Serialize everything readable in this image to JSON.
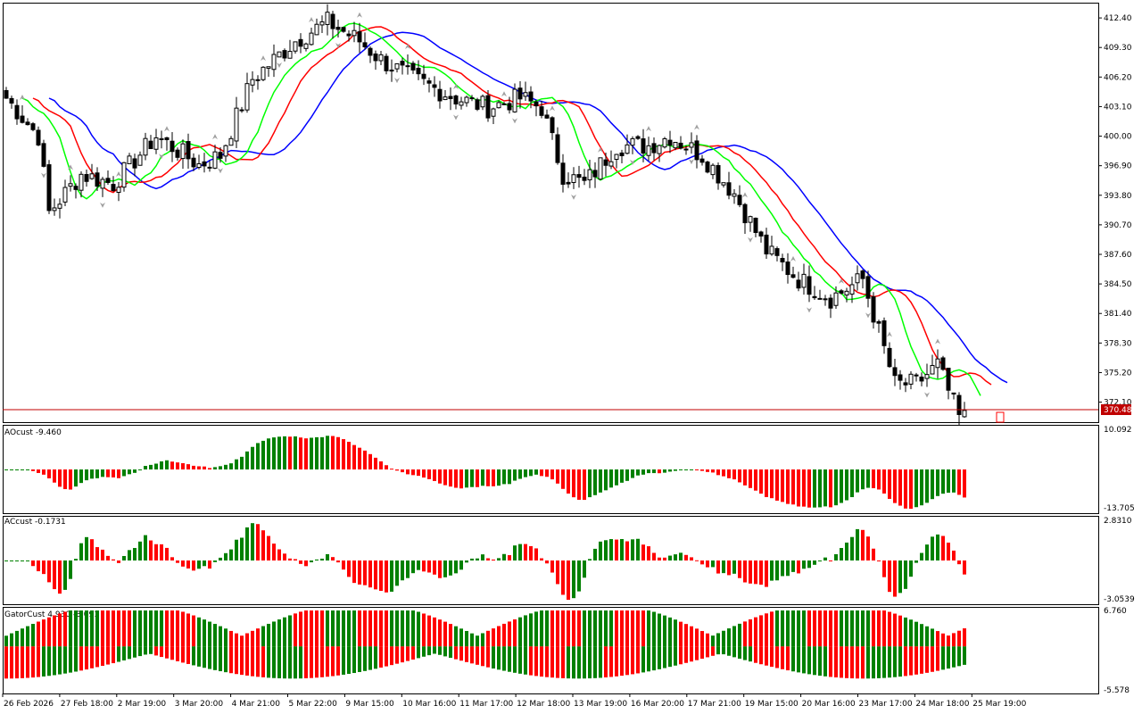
{
  "colors": {
    "up": "#008000",
    "down": "#ff0000",
    "jaw": "#0000ff",
    "teeth": "#ff0000",
    "lips": "#00ff00",
    "price_line": "#c00000",
    "price_label_bg": "#c00000",
    "frame": "#000000",
    "fractal": "#a0a0a0"
  },
  "main": {
    "price_scale": [
      "412.40",
      "409.30",
      "406.20",
      "403.10",
      "400.00",
      "396.90",
      "393.80",
      "390.70",
      "387.60",
      "384.50",
      "381.40",
      "378.30",
      "375.20",
      "372.10"
    ],
    "current_price": "370.48",
    "ylim": [
      370.0,
      414.0
    ]
  },
  "panels": [
    {
      "label": "AOcust -9.460",
      "scale_top": "10.092",
      "scale_bottom": "-13.705"
    },
    {
      "label": "ACcust -0.1731",
      "scale_top": "2.8310",
      "scale_bottom": "-3.0539"
    },
    {
      "label": "GatorCust 4.930 -3.091",
      "scale_top": "6.760",
      "scale_bottom": "-5.578"
    }
  ],
  "time_axis": [
    "26 Feb 2026",
    "27 Feb 18:00",
    "2 Mar 19:00",
    "3 Mar 20:00",
    "4 Mar 21:00",
    "5 Mar 22:00",
    "9 Mar 15:00",
    "10 Mar 16:00",
    "11 Mar 17:00",
    "12 Mar 18:00",
    "13 Mar 19:00",
    "16 Mar 20:00",
    "17 Mar 21:00",
    "19 Mar 15:00",
    "20 Mar 16:00",
    "23 Mar 17:00",
    "24 Mar 18:00",
    "25 Mar 19:00"
  ]
}
